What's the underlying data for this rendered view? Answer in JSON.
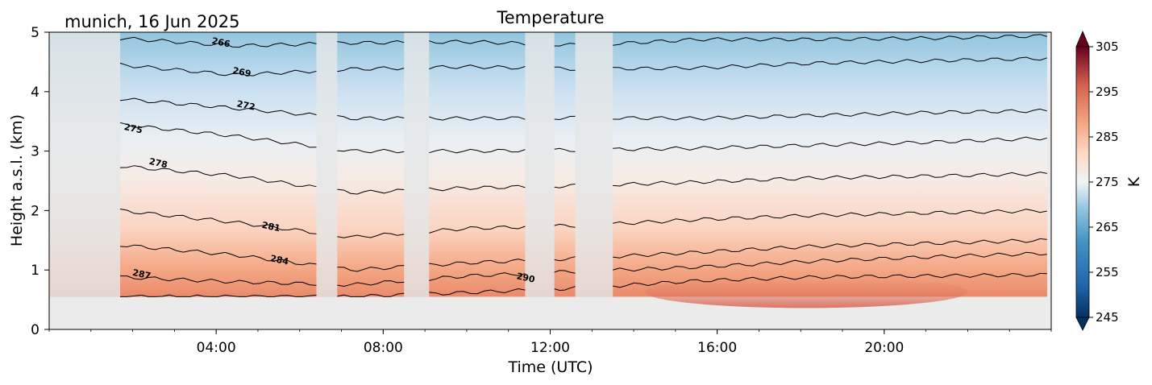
{
  "chart_data": {
    "type": "heatmap",
    "title": "Temperature",
    "subtitle": "munich, 16 Jun 2025",
    "xlabel": "Time (UTC)",
    "ylabel": "Height a.s.l. (km)",
    "x_range_hours": [
      0,
      24
    ],
    "ylim": [
      0,
      5
    ],
    "x_ticks": [
      {
        "hour": 4,
        "label": "04:00"
      },
      {
        "hour": 8,
        "label": "08:00"
      },
      {
        "hour": 12,
        "label": "12:00"
      },
      {
        "hour": 16,
        "label": "16:00"
      },
      {
        "hour": 20,
        "label": "20:00"
      }
    ],
    "y_ticks": [
      0,
      1,
      2,
      3,
      4,
      5
    ],
    "no_data_below_km": 0.55,
    "gaps_hours": [
      [
        0,
        1.7
      ],
      [
        6.4,
        6.9
      ],
      [
        8.5,
        9.1
      ],
      [
        11.4,
        12.1
      ],
      [
        12.6,
        13.5
      ]
    ],
    "colorbar": {
      "label": "K",
      "range": [
        245,
        305
      ],
      "ticks": [
        245,
        255,
        265,
        275,
        285,
        295,
        305
      ],
      "colormap": "RdBu_r",
      "extend": "both"
    },
    "contour_labels": [
      {
        "value": "266",
        "hour": 4.1,
        "km": 4.78
      },
      {
        "value": "269",
        "hour": 4.6,
        "km": 4.28
      },
      {
        "value": "272",
        "hour": 4.7,
        "km": 3.72
      },
      {
        "value": "275",
        "hour": 2.0,
        "km": 3.33
      },
      {
        "value": "278",
        "hour": 2.6,
        "km": 2.75
      },
      {
        "value": "281",
        "hour": 5.3,
        "km": 1.68
      },
      {
        "value": "284",
        "hour": 5.5,
        "km": 1.12
      },
      {
        "value": "287",
        "hour": 2.2,
        "km": 0.88
      },
      {
        "value": "290",
        "hour": 11.4,
        "km": 0.82
      }
    ],
    "contours": [
      {
        "level": 266,
        "km": [
          4.9,
          4.77,
          4.82,
          4.84,
          4.78,
          4.88,
          4.88,
          4.9,
          4.94
        ]
      },
      {
        "level": 269,
        "km": [
          4.45,
          4.28,
          4.38,
          4.42,
          4.38,
          4.4,
          4.48,
          4.52,
          4.56
        ]
      },
      {
        "level": 272,
        "km": [
          3.88,
          3.72,
          3.55,
          3.55,
          3.56,
          3.55,
          3.6,
          3.65,
          3.68
        ]
      },
      {
        "level": 275,
        "km": [
          3.45,
          3.25,
          3.0,
          3.0,
          3.02,
          3.05,
          3.1,
          3.15,
          3.22
        ]
      },
      {
        "level": 278,
        "km": [
          2.75,
          2.58,
          2.3,
          2.38,
          2.42,
          2.48,
          2.55,
          2.58,
          2.62
        ]
      },
      {
        "level": 281,
        "km": [
          2.0,
          1.8,
          1.55,
          1.7,
          1.75,
          1.85,
          1.92,
          1.96,
          2.0
        ]
      },
      {
        "level": 284,
        "km": [
          1.42,
          1.25,
          1.0,
          1.12,
          1.2,
          1.3,
          1.4,
          1.45,
          1.5
        ]
      },
      {
        "level": 287,
        "km": [
          0.88,
          0.8,
          0.75,
          0.9,
          0.98,
          1.05,
          1.15,
          1.22,
          1.28
        ]
      },
      {
        "level": 290,
        "km": [
          0.55,
          0.55,
          0.55,
          0.62,
          0.7,
          0.82,
          0.88,
          0.9,
          0.92
        ]
      }
    ]
  }
}
